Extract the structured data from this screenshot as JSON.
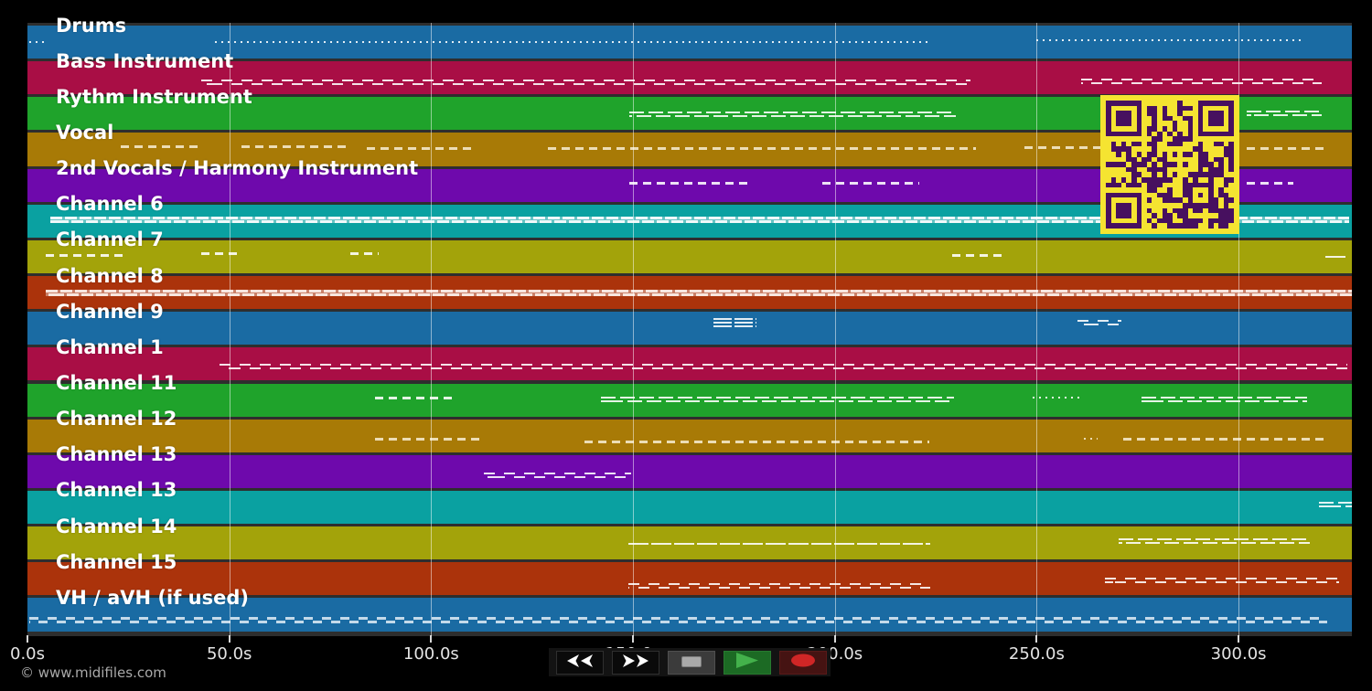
{
  "palette": {
    "blue": "#1a6ba3",
    "crimson": "#a90e45",
    "green": "#1fa32b",
    "gold": "#a87a06",
    "purple": "#6e09ac",
    "teal": "#0aa1a1",
    "olive": "#a3a30a",
    "rust": "#ab330b"
  },
  "chart_data": {
    "type": "table",
    "title": "",
    "xlabel": "time (s)",
    "x_range_seconds": [
      0,
      328
    ],
    "x_tick_seconds": [
      0,
      50,
      100,
      150,
      200,
      250,
      300
    ],
    "note": "MIDI piano-roll overview; each row is a channel band, segments give active note regions in seconds"
  },
  "tracks": [
    {
      "label": "Drums",
      "color": "blue",
      "segments": [
        {
          "t0": 0.5,
          "t1": 4.5,
          "style": "dots",
          "y": 0.5
        },
        {
          "t0": 46.5,
          "t1": 224,
          "style": "dots",
          "y": 0.5
        },
        {
          "t0": 250,
          "t1": 316,
          "style": "dots",
          "y": 0.45
        }
      ]
    },
    {
      "label": "Bass Instrument",
      "color": "crimson",
      "segments": [
        {
          "t0": 43,
          "t1": 233.5,
          "style": "wave",
          "y": 0.62
        },
        {
          "t0": 261,
          "t1": 320.5,
          "style": "wave",
          "y": 0.6
        }
      ]
    },
    {
      "label": "Rythm Instrument",
      "color": "green",
      "segments": [
        {
          "t0": 149,
          "t1": 230,
          "style": "double",
          "y": 0.52
        },
        {
          "t0": 302,
          "t1": 320.7,
          "style": "double",
          "y": 0.48
        }
      ]
    },
    {
      "label": "Vocal",
      "color": "gold",
      "note_color": "rgba(244,232,200,0.9)",
      "segments": [
        {
          "t0": 23,
          "t1": 43,
          "style": "dash",
          "y": 0.42
        },
        {
          "t0": 53,
          "t1": 79,
          "style": "dash",
          "y": 0.42
        },
        {
          "t0": 84,
          "t1": 110,
          "style": "dash",
          "y": 0.46
        },
        {
          "t0": 129,
          "t1": 235,
          "style": "dash",
          "y": 0.46
        },
        {
          "t0": 247,
          "t1": 266,
          "style": "dash",
          "y": 0.44
        },
        {
          "t0": 302,
          "t1": 321.5,
          "style": "dash",
          "y": 0.46
        }
      ]
    },
    {
      "label": "2nd Vocals / Harmony Instrument",
      "color": "purple",
      "segments": [
        {
          "t0": 149,
          "t1": 179,
          "style": "dash",
          "y": 0.45
        },
        {
          "t0": 197,
          "t1": 221,
          "style": "dash",
          "y": 0.45
        },
        {
          "t0": 302,
          "t1": 313.5,
          "style": "dash",
          "y": 0.45
        }
      ]
    },
    {
      "label": "Channel 6",
      "color": "teal",
      "note_color": "rgba(240,248,250,0.95)",
      "segments": [
        {
          "t0": 5.7,
          "t1": 327.5,
          "style": "dense",
          "y": 0.47
        }
      ]
    },
    {
      "label": "Channel 7",
      "color": "olive",
      "segments": [
        {
          "t0": 4.5,
          "t1": 25,
          "style": "dash",
          "y": 0.45
        },
        {
          "t0": 43,
          "t1": 53,
          "style": "dash",
          "y": 0.4
        },
        {
          "t0": 80,
          "t1": 87,
          "style": "dash",
          "y": 0.4
        },
        {
          "t0": 229,
          "t1": 242.5,
          "style": "dash",
          "y": 0.45
        },
        {
          "t0": 321.5,
          "t1": 326.5,
          "style": "line",
          "y": 0.5
        }
      ]
    },
    {
      "label": "Channel 8",
      "color": "rust",
      "note_color": "rgba(246,222,212,0.95)",
      "segments": [
        {
          "t0": 4.5,
          "t1": 328,
          "style": "dense",
          "y": 0.52
        }
      ]
    },
    {
      "label": "Channel 9",
      "color": "blue",
      "segments": [
        {
          "t0": 170,
          "t1": 180.5,
          "style": "triple",
          "y": 0.33
        },
        {
          "t0": 260,
          "t1": 271,
          "style": "wave",
          "y": 0.33
        }
      ]
    },
    {
      "label": "Channel 1",
      "color": "crimson",
      "segments": [
        {
          "t0": 47.5,
          "t1": 327,
          "style": "wave",
          "y": 0.58
        }
      ]
    },
    {
      "label": "Channel 11",
      "color": "green",
      "segments": [
        {
          "t0": 86,
          "t1": 106,
          "style": "dash",
          "y": 0.45
        },
        {
          "t0": 142,
          "t1": 229.5,
          "style": "double",
          "y": 0.48
        },
        {
          "t0": 249,
          "t1": 260.5,
          "style": "dots",
          "y": 0.42
        },
        {
          "t0": 276,
          "t1": 317,
          "style": "double",
          "y": 0.48
        }
      ]
    },
    {
      "label": "Channel 12",
      "color": "gold",
      "note_color": "rgba(244,232,200,0.9)",
      "segments": [
        {
          "t0": 86,
          "t1": 113,
          "style": "dash",
          "y": 0.6
        },
        {
          "t0": 138,
          "t1": 223.5,
          "style": "dash",
          "y": 0.68
        },
        {
          "t0": 261.8,
          "t1": 265,
          "style": "dots",
          "y": 0.6
        },
        {
          "t0": 271.5,
          "t1": 321.5,
          "style": "dash",
          "y": 0.6
        }
      ]
    },
    {
      "label": "Channel 13",
      "color": "purple",
      "segments": [
        {
          "t0": 113,
          "t1": 149.5,
          "style": "wave",
          "y": 0.62
        }
      ]
    },
    {
      "label": "Channel 13",
      "color": "teal",
      "segments": [
        {
          "t0": 320,
          "t1": 328,
          "style": "double",
          "y": 0.42
        }
      ]
    },
    {
      "label": "Channel 14",
      "color": "olive",
      "segments": [
        {
          "t0": 148.8,
          "t1": 223.6,
          "style": "line",
          "y": 0.52
        },
        {
          "t0": 270.3,
          "t1": 317.6,
          "style": "double",
          "y": 0.45
        }
      ]
    },
    {
      "label": "Channel 15",
      "color": "rust",
      "segments": [
        {
          "t0": 148.8,
          "t1": 223.6,
          "style": "wave",
          "y": 0.72
        },
        {
          "t0": 267,
          "t1": 325,
          "style": "wave",
          "y": 0.55
        }
      ]
    },
    {
      "label": "VH / aVH (if used)",
      "color": "blue",
      "note_color": "rgba(205,224,238,0.95)",
      "segments": [
        {
          "t0": 0.5,
          "t1": 322,
          "style": "zigzag",
          "y": 0.66
        }
      ]
    }
  ],
  "axis": {
    "tick_labels": [
      "0.0s",
      "50.0s",
      "100.0s",
      "150.0s",
      "200.0s",
      "250.0s",
      "300.0s"
    ],
    "tick_seconds": [
      0,
      50,
      100,
      150,
      200,
      250,
      300
    ]
  },
  "transport": {
    "buttons": [
      {
        "name": "rewind",
        "icon": "rewind-icon"
      },
      {
        "name": "fast-forward",
        "icon": "fast-forward-icon"
      },
      {
        "name": "stop",
        "icon": "stop-icon"
      },
      {
        "name": "play",
        "icon": "play-icon"
      },
      {
        "name": "record",
        "icon": "record-icon"
      }
    ],
    "icon_colors": {
      "arrows": "#ffffff",
      "stop": "#a9a9a9",
      "play": "#43b14b",
      "record": "#cf2626"
    }
  },
  "watermark": "© www.midifiles.com",
  "qr": {
    "modules": 25,
    "seed": 11,
    "dark": "#47105f",
    "light": "#f5e431"
  }
}
